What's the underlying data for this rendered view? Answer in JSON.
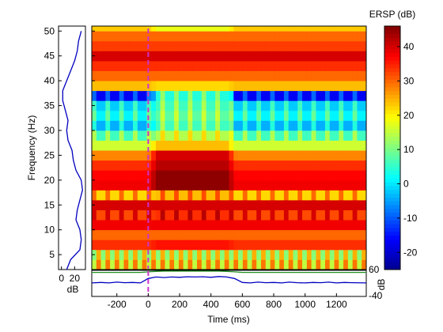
{
  "chart_data": {
    "type": "heatmap",
    "colorbar_title": "ERSP (dB)",
    "colorbar_ticks": [
      -20,
      -10,
      0,
      10,
      20,
      30,
      40
    ],
    "colorbar_range": [
      -25,
      46
    ],
    "colormap": [
      "#00008f",
      "#0000ff",
      "#0080ff",
      "#00ffff",
      "#80ff80",
      "#ffff00",
      "#ff8000",
      "#ff0000",
      "#800000"
    ],
    "ylabel": "Frequency (Hz)",
    "xlabel": "Time (ms)",
    "xlim": [
      -360,
      1390
    ],
    "ylim": [
      2,
      51
    ],
    "x_ticks": [
      -200,
      0,
      200,
      400,
      600,
      800,
      1000,
      1200
    ],
    "y_ticks": [
      5,
      10,
      15,
      20,
      25,
      30,
      35,
      40,
      45,
      50
    ],
    "event_marker_x": 0,
    "event_marker_color": "#cc33cc",
    "bands": [
      {
        "f_min": 2,
        "f_max": 4,
        "baseline_dB": 22,
        "peak_dB": 22,
        "pattern": "checker"
      },
      {
        "f_min": 4,
        "f_max": 6,
        "baseline_dB": 18,
        "peak_dB": 18,
        "pattern": "checker"
      },
      {
        "f_min": 6,
        "f_max": 8,
        "baseline_dB": 34,
        "peak_dB": 36,
        "pattern": "flat"
      },
      {
        "f_min": 8,
        "f_max": 10,
        "baseline_dB": 30,
        "peak_dB": 30,
        "pattern": "flat"
      },
      {
        "f_min": 10,
        "f_max": 12,
        "baseline_dB": 38,
        "peak_dB": 38,
        "pattern": "flat"
      },
      {
        "f_min": 12,
        "f_max": 14,
        "baseline_dB": 34,
        "peak_dB": 36,
        "pattern": "stripe"
      },
      {
        "f_min": 14,
        "f_max": 16,
        "baseline_dB": 40,
        "peak_dB": 40,
        "pattern": "flat"
      },
      {
        "f_min": 16,
        "f_max": 18,
        "baseline_dB": 24,
        "peak_dB": 26,
        "pattern": "stripe"
      },
      {
        "f_min": 18,
        "f_max": 20,
        "baseline_dB": 38,
        "peak_dB": 45,
        "pattern": "flat"
      },
      {
        "f_min": 20,
        "f_max": 22,
        "baseline_dB": 37,
        "peak_dB": 45,
        "pattern": "flat"
      },
      {
        "f_min": 22,
        "f_max": 24,
        "baseline_dB": 34,
        "peak_dB": 42,
        "pattern": "flat"
      },
      {
        "f_min": 24,
        "f_max": 26,
        "baseline_dB": 28,
        "peak_dB": 40,
        "pattern": "flat"
      },
      {
        "f_min": 26,
        "f_max": 28,
        "baseline_dB": 16,
        "peak_dB": 24,
        "pattern": "flat"
      },
      {
        "f_min": 28,
        "f_max": 30,
        "baseline_dB": 8,
        "peak_dB": 16,
        "pattern": "stripe"
      },
      {
        "f_min": 30,
        "f_max": 32,
        "baseline_dB": -2,
        "peak_dB": 8,
        "pattern": "stripe"
      },
      {
        "f_min": 32,
        "f_max": 34,
        "baseline_dB": 3,
        "peak_dB": 10,
        "pattern": "stripe"
      },
      {
        "f_min": 34,
        "f_max": 36,
        "baseline_dB": 0,
        "peak_dB": 8,
        "pattern": "stripe"
      },
      {
        "f_min": 36,
        "f_max": 38,
        "baseline_dB": -15,
        "peak_dB": 6,
        "pattern": "stripe"
      },
      {
        "f_min": 38,
        "f_max": 40,
        "baseline_dB": 24,
        "peak_dB": 22,
        "pattern": "flat"
      },
      {
        "f_min": 40,
        "f_max": 42,
        "baseline_dB": 30,
        "peak_dB": 30,
        "pattern": "flat"
      },
      {
        "f_min": 42,
        "f_max": 44,
        "baseline_dB": 34,
        "peak_dB": 34,
        "pattern": "flat"
      },
      {
        "f_min": 44,
        "f_max": 46,
        "baseline_dB": 40,
        "peak_dB": 40,
        "pattern": "flat"
      },
      {
        "f_min": 46,
        "f_max": 48,
        "baseline_dB": 33,
        "peak_dB": 33,
        "pattern": "flat"
      },
      {
        "f_min": 48,
        "f_max": 50,
        "baseline_dB": 30,
        "peak_dB": 30,
        "pattern": "flat"
      },
      {
        "f_min": 50,
        "f_max": 51,
        "baseline_dB": 23,
        "peak_dB": 18,
        "pattern": "flat"
      }
    ],
    "response_window": {
      "t_start": 0,
      "t_end": 560
    },
    "side_spectrum": {
      "xlabel": "dB",
      "ticks": [
        0,
        20
      ],
      "freqs": [
        2,
        4,
        6,
        8,
        10,
        12,
        14,
        16,
        18,
        20,
        22,
        24,
        26,
        28,
        30,
        32,
        34,
        36,
        38,
        40,
        42,
        44,
        46,
        48,
        50
      ],
      "values_dB": [
        8,
        14,
        28,
        30,
        28,
        22,
        24,
        28,
        32,
        30,
        22,
        18,
        16,
        10,
        8,
        10,
        6,
        2,
        2,
        8,
        14,
        20,
        24,
        26,
        30
      ]
    },
    "bottom_trace": {
      "ylim": [
        -40,
        60
      ],
      "tick_labels": [
        "60",
        "-40"
      ],
      "side_label": "dB",
      "times": [
        -360,
        -300,
        -250,
        -200,
        -150,
        -100,
        -50,
        0,
        50,
        100,
        150,
        200,
        250,
        300,
        350,
        400,
        450,
        500,
        550,
        600,
        650,
        700,
        750,
        800,
        850,
        900,
        950,
        1000,
        1050,
        1100,
        1150,
        1200,
        1250,
        1300,
        1390
      ],
      "values_dB": [
        12,
        14,
        12,
        15,
        13,
        14,
        12,
        30,
        36,
        34,
        36,
        35,
        37,
        36,
        37,
        35,
        38,
        36,
        30,
        14,
        12,
        15,
        13,
        14,
        12,
        15,
        13,
        12,
        14,
        13,
        15,
        12,
        14,
        13,
        12
      ],
      "upper_trace_dB": [
        55,
        55,
        55,
        55,
        55,
        55,
        55,
        57,
        59,
        60,
        60,
        60,
        60,
        60,
        60,
        60,
        60,
        59,
        57,
        55,
        55,
        55,
        55,
        55,
        55,
        55,
        55,
        55,
        55,
        55,
        55,
        55,
        55,
        55,
        55
      ]
    }
  }
}
